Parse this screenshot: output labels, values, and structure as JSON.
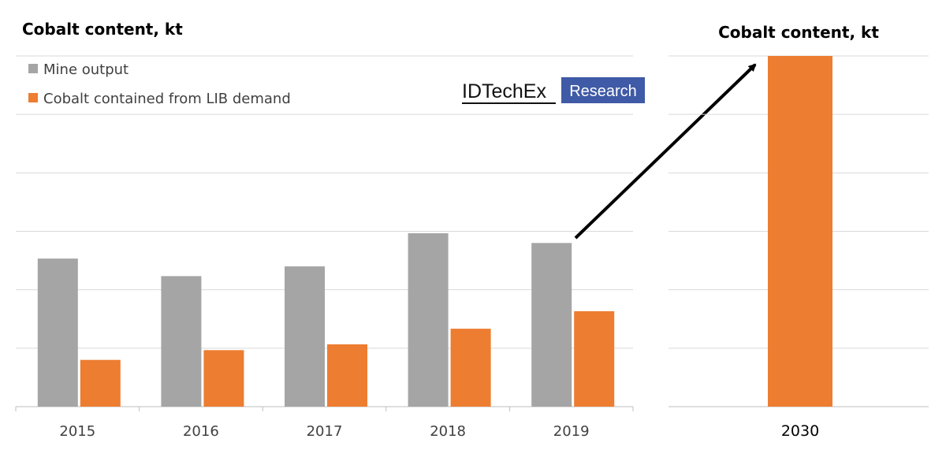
{
  "brand": {
    "name": "IDTechEx",
    "badge": "Research",
    "badge_color": "#3f5aa6"
  },
  "chart_data": [
    {
      "type": "bar",
      "title": "Cobalt content, kt",
      "categories": [
        "2015",
        "2016",
        "2017",
        "2018",
        "2019"
      ],
      "ylim": [
        0,
        180
      ],
      "grid": true,
      "legend_position": "top-left",
      "series": [
        {
          "name": "Mine output",
          "color": "#a5a5a5",
          "values": [
            76,
            67,
            72,
            89,
            84
          ]
        },
        {
          "name": "Cobalt contained from LIB demand",
          "color": "#ed7d31",
          "values": [
            24,
            29,
            32,
            40,
            49
          ]
        }
      ]
    },
    {
      "type": "bar",
      "title": "Cobalt content, kt",
      "categories": [
        "2030"
      ],
      "ylim": [
        0,
        180
      ],
      "grid": true,
      "series": [
        {
          "name": "Cobalt contained from LIB demand",
          "color": "#ed7d31",
          "values": [
            180
          ]
        }
      ]
    }
  ]
}
